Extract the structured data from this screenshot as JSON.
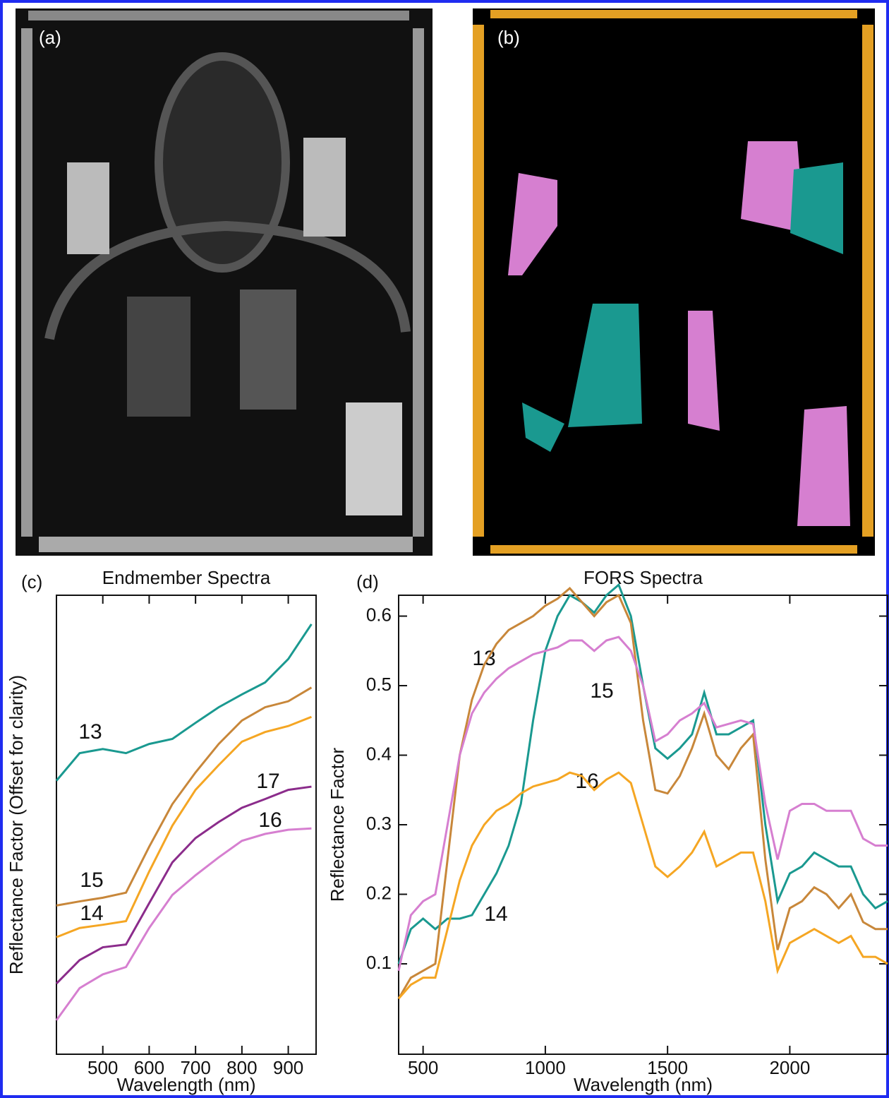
{
  "images": [
    {
      "label": "(a)"
    },
    {
      "label": "(b)"
    }
  ],
  "chart_data": [
    {
      "type": "line",
      "panel": "(c)",
      "title": "Endmember Spectra",
      "x_label": "Wavelength (nm)",
      "y_label": "Reflectance Factor (Offset for clarity)",
      "x": [
        400,
        450,
        500,
        550,
        600,
        650,
        700,
        750,
        800,
        850,
        900,
        950
      ],
      "xlim": [
        400,
        960
      ],
      "xticks": [
        500,
        600,
        700,
        800,
        900
      ],
      "ylim": [
        0,
        1
      ],
      "series": [
        {
          "name": "13",
          "color": "#1a9990",
          "values": [
            0.596,
            0.656,
            0.665,
            0.656,
            0.676,
            0.687,
            0.722,
            0.756,
            0.784,
            0.81,
            0.861,
            0.937
          ]
        },
        {
          "name": "15",
          "color": "#c8873a",
          "values": [
            0.324,
            0.333,
            0.341,
            0.352,
            0.452,
            0.545,
            0.614,
            0.676,
            0.727,
            0.756,
            0.769,
            0.799
          ]
        },
        {
          "name": "14",
          "color": "#f5a623",
          "values": [
            0.255,
            0.275,
            0.282,
            0.29,
            0.398,
            0.498,
            0.576,
            0.63,
            0.681,
            0.702,
            0.715,
            0.735
          ]
        },
        {
          "name": "17",
          "color": "#8b2c8b",
          "values": [
            0.154,
            0.205,
            0.233,
            0.239,
            0.329,
            0.418,
            0.471,
            0.506,
            0.537,
            0.556,
            0.576,
            0.583
          ]
        },
        {
          "name": "16",
          "color": "#d67fd0",
          "values": [
            0.074,
            0.144,
            0.174,
            0.19,
            0.275,
            0.347,
            0.39,
            0.429,
            0.465,
            0.48,
            0.489,
            0.492
          ]
        }
      ]
    },
    {
      "type": "line",
      "panel": "(d)",
      "title": "FORS Spectra",
      "x_label": "Wavelength (nm)",
      "y_label": "Reflectance Factor",
      "x": [
        400,
        450,
        500,
        550,
        600,
        650,
        700,
        750,
        800,
        850,
        900,
        950,
        1000,
        1050,
        1100,
        1150,
        1200,
        1250,
        1300,
        1350,
        1400,
        1450,
        1500,
        1550,
        1600,
        1650,
        1700,
        1750,
        1800,
        1850,
        1900,
        1950,
        2000,
        2050,
        2100,
        2150,
        2200,
        2250,
        2300,
        2350,
        2400
      ],
      "xlim": [
        400,
        2400
      ],
      "xticks": [
        500,
        1000,
        1500,
        2000
      ],
      "ylim": [
        -0.03,
        0.63
      ],
      "yticks": [
        0.1,
        0.2,
        0.3,
        0.4,
        0.5,
        0.6
      ],
      "series": [
        {
          "name": "13",
          "color": "#1a9990",
          "values": [
            0.1,
            0.15,
            0.165,
            0.15,
            0.165,
            0.165,
            0.17,
            0.2,
            0.23,
            0.27,
            0.33,
            0.45,
            0.55,
            0.6,
            0.63,
            0.62,
            0.605,
            0.63,
            0.645,
            0.6,
            0.5,
            0.41,
            0.395,
            0.41,
            0.43,
            0.49,
            0.43,
            0.43,
            0.44,
            0.45,
            0.3,
            0.19,
            0.23,
            0.24,
            0.26,
            0.25,
            0.24,
            0.24,
            0.2,
            0.18,
            0.19
          ]
        },
        {
          "name": "15",
          "color": "#c8873a",
          "values": [
            0.05,
            0.08,
            0.09,
            0.1,
            0.25,
            0.4,
            0.48,
            0.53,
            0.56,
            0.58,
            0.59,
            0.6,
            0.615,
            0.625,
            0.64,
            0.62,
            0.6,
            0.62,
            0.63,
            0.59,
            0.45,
            0.35,
            0.345,
            0.37,
            0.41,
            0.46,
            0.4,
            0.38,
            0.41,
            0.43,
            0.25,
            0.12,
            0.18,
            0.19,
            0.21,
            0.2,
            0.18,
            0.2,
            0.16,
            0.15,
            0.15
          ]
        },
        {
          "name": "16",
          "color": "#d67fd0",
          "values": [
            0.09,
            0.17,
            0.19,
            0.2,
            0.3,
            0.4,
            0.46,
            0.49,
            0.51,
            0.525,
            0.535,
            0.545,
            0.55,
            0.555,
            0.565,
            0.565,
            0.55,
            0.565,
            0.57,
            0.55,
            0.5,
            0.42,
            0.43,
            0.45,
            0.46,
            0.475,
            0.44,
            0.445,
            0.45,
            0.445,
            0.33,
            0.25,
            0.32,
            0.33,
            0.33,
            0.32,
            0.32,
            0.32,
            0.28,
            0.27,
            0.27
          ]
        },
        {
          "name": "14",
          "color": "#f5a623",
          "values": [
            0.05,
            0.07,
            0.08,
            0.08,
            0.15,
            0.22,
            0.27,
            0.3,
            0.32,
            0.33,
            0.345,
            0.355,
            0.36,
            0.365,
            0.375,
            0.37,
            0.35,
            0.365,
            0.375,
            0.36,
            0.3,
            0.24,
            0.225,
            0.24,
            0.26,
            0.29,
            0.24,
            0.25,
            0.26,
            0.26,
            0.19,
            0.09,
            0.13,
            0.14,
            0.15,
            0.14,
            0.13,
            0.14,
            0.11,
            0.11,
            0.1
          ]
        }
      ]
    }
  ]
}
